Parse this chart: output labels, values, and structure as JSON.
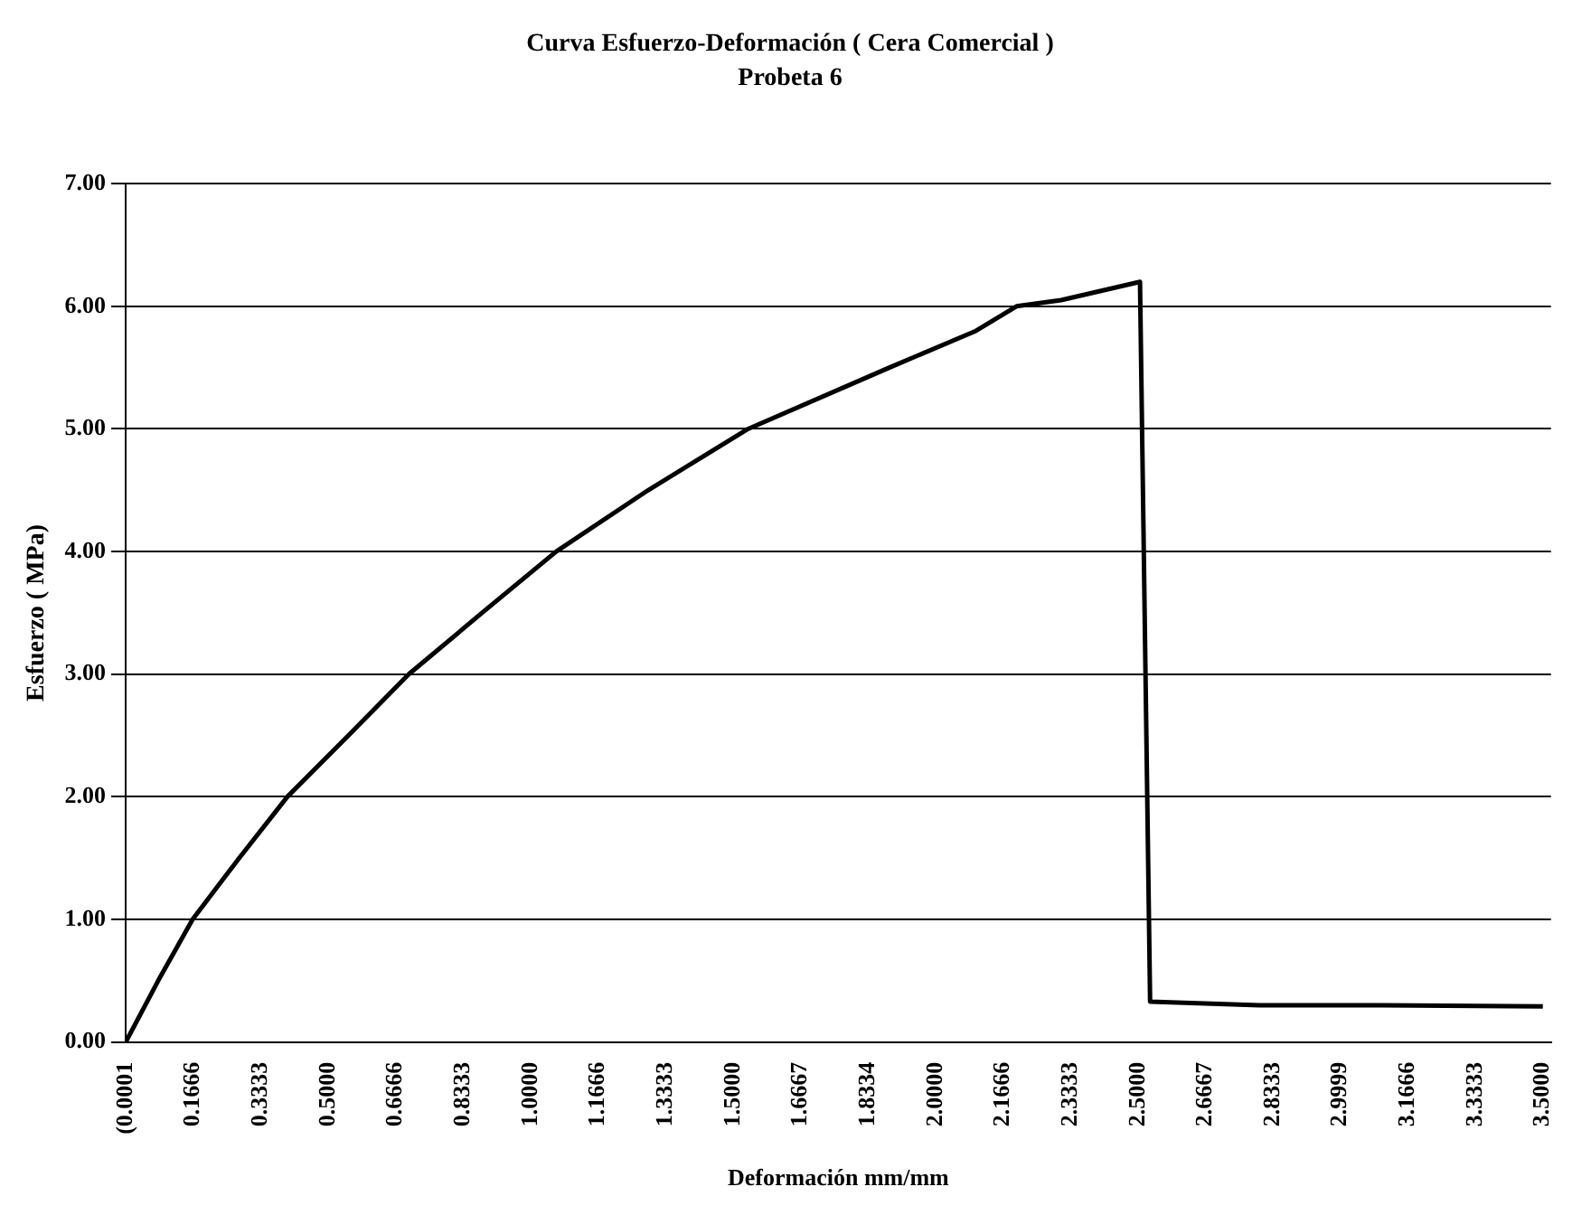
{
  "chart_data": {
    "type": "line",
    "title": "Curva Esfuerzo-Deformación ( Cera Comercial )",
    "subtitle": "Probeta 6",
    "xlabel": "Deformación mm/mm",
    "ylabel": "Esfuerzo ( MPa)",
    "series": [
      {
        "color": "#000000",
        "x": [
          0,
          0.08,
          0.165,
          0.28,
          0.399,
          0.55,
          0.699,
          0.88,
          1.063,
          1.29,
          1.537,
          1.886,
          2.1,
          2.2,
          2.31,
          2.505,
          2.53,
          2.8,
          3.1,
          3.5
        ],
        "values": [
          0,
          0.5,
          1.0,
          1.5,
          2.0,
          2.5,
          3.0,
          3.5,
          4.0,
          4.5,
          5.0,
          5.5,
          5.8,
          6.0,
          6.05,
          6.2,
          0.33,
          0.3,
          0.3,
          0.29
        ]
      }
    ],
    "xlim": [
      -0.0001,
      3.52
    ],
    "xticks": [
      {
        "value": -0.0001,
        "label": "(0.0001"
      },
      0.1666,
      0.3333,
      {
        "value": 0.5,
        "label": "0.5000"
      },
      0.6666,
      0.8333,
      {
        "value": 1,
        "label": "1.0000"
      },
      1.1666,
      1.3333,
      {
        "value": 1.5,
        "label": "1.5000"
      },
      1.6667,
      1.8334,
      {
        "value": 2,
        "label": "2.0000"
      },
      2.1666,
      2.3333,
      {
        "value": 2.5,
        "label": "2.5000"
      },
      2.6667,
      2.8333,
      2.9999,
      3.1666,
      3.3333,
      {
        "value": 3.5,
        "label": "3.5000"
      }
    ],
    "ylim": [
      0,
      7
    ],
    "yticks": [
      {
        "value": 0,
        "label": "0.00"
      },
      {
        "value": 1,
        "label": "1.00"
      },
      {
        "value": 2,
        "label": "2.00"
      },
      {
        "value": 3,
        "label": "3.00"
      },
      {
        "value": 4,
        "label": "4.00"
      },
      {
        "value": 5,
        "label": "5.00"
      },
      {
        "value": 6,
        "label": "6.00"
      },
      {
        "value": 7,
        "label": "7.00"
      }
    ],
    "grid": "y",
    "legend": false,
    "marker": "none",
    "line_style": "solid"
  }
}
